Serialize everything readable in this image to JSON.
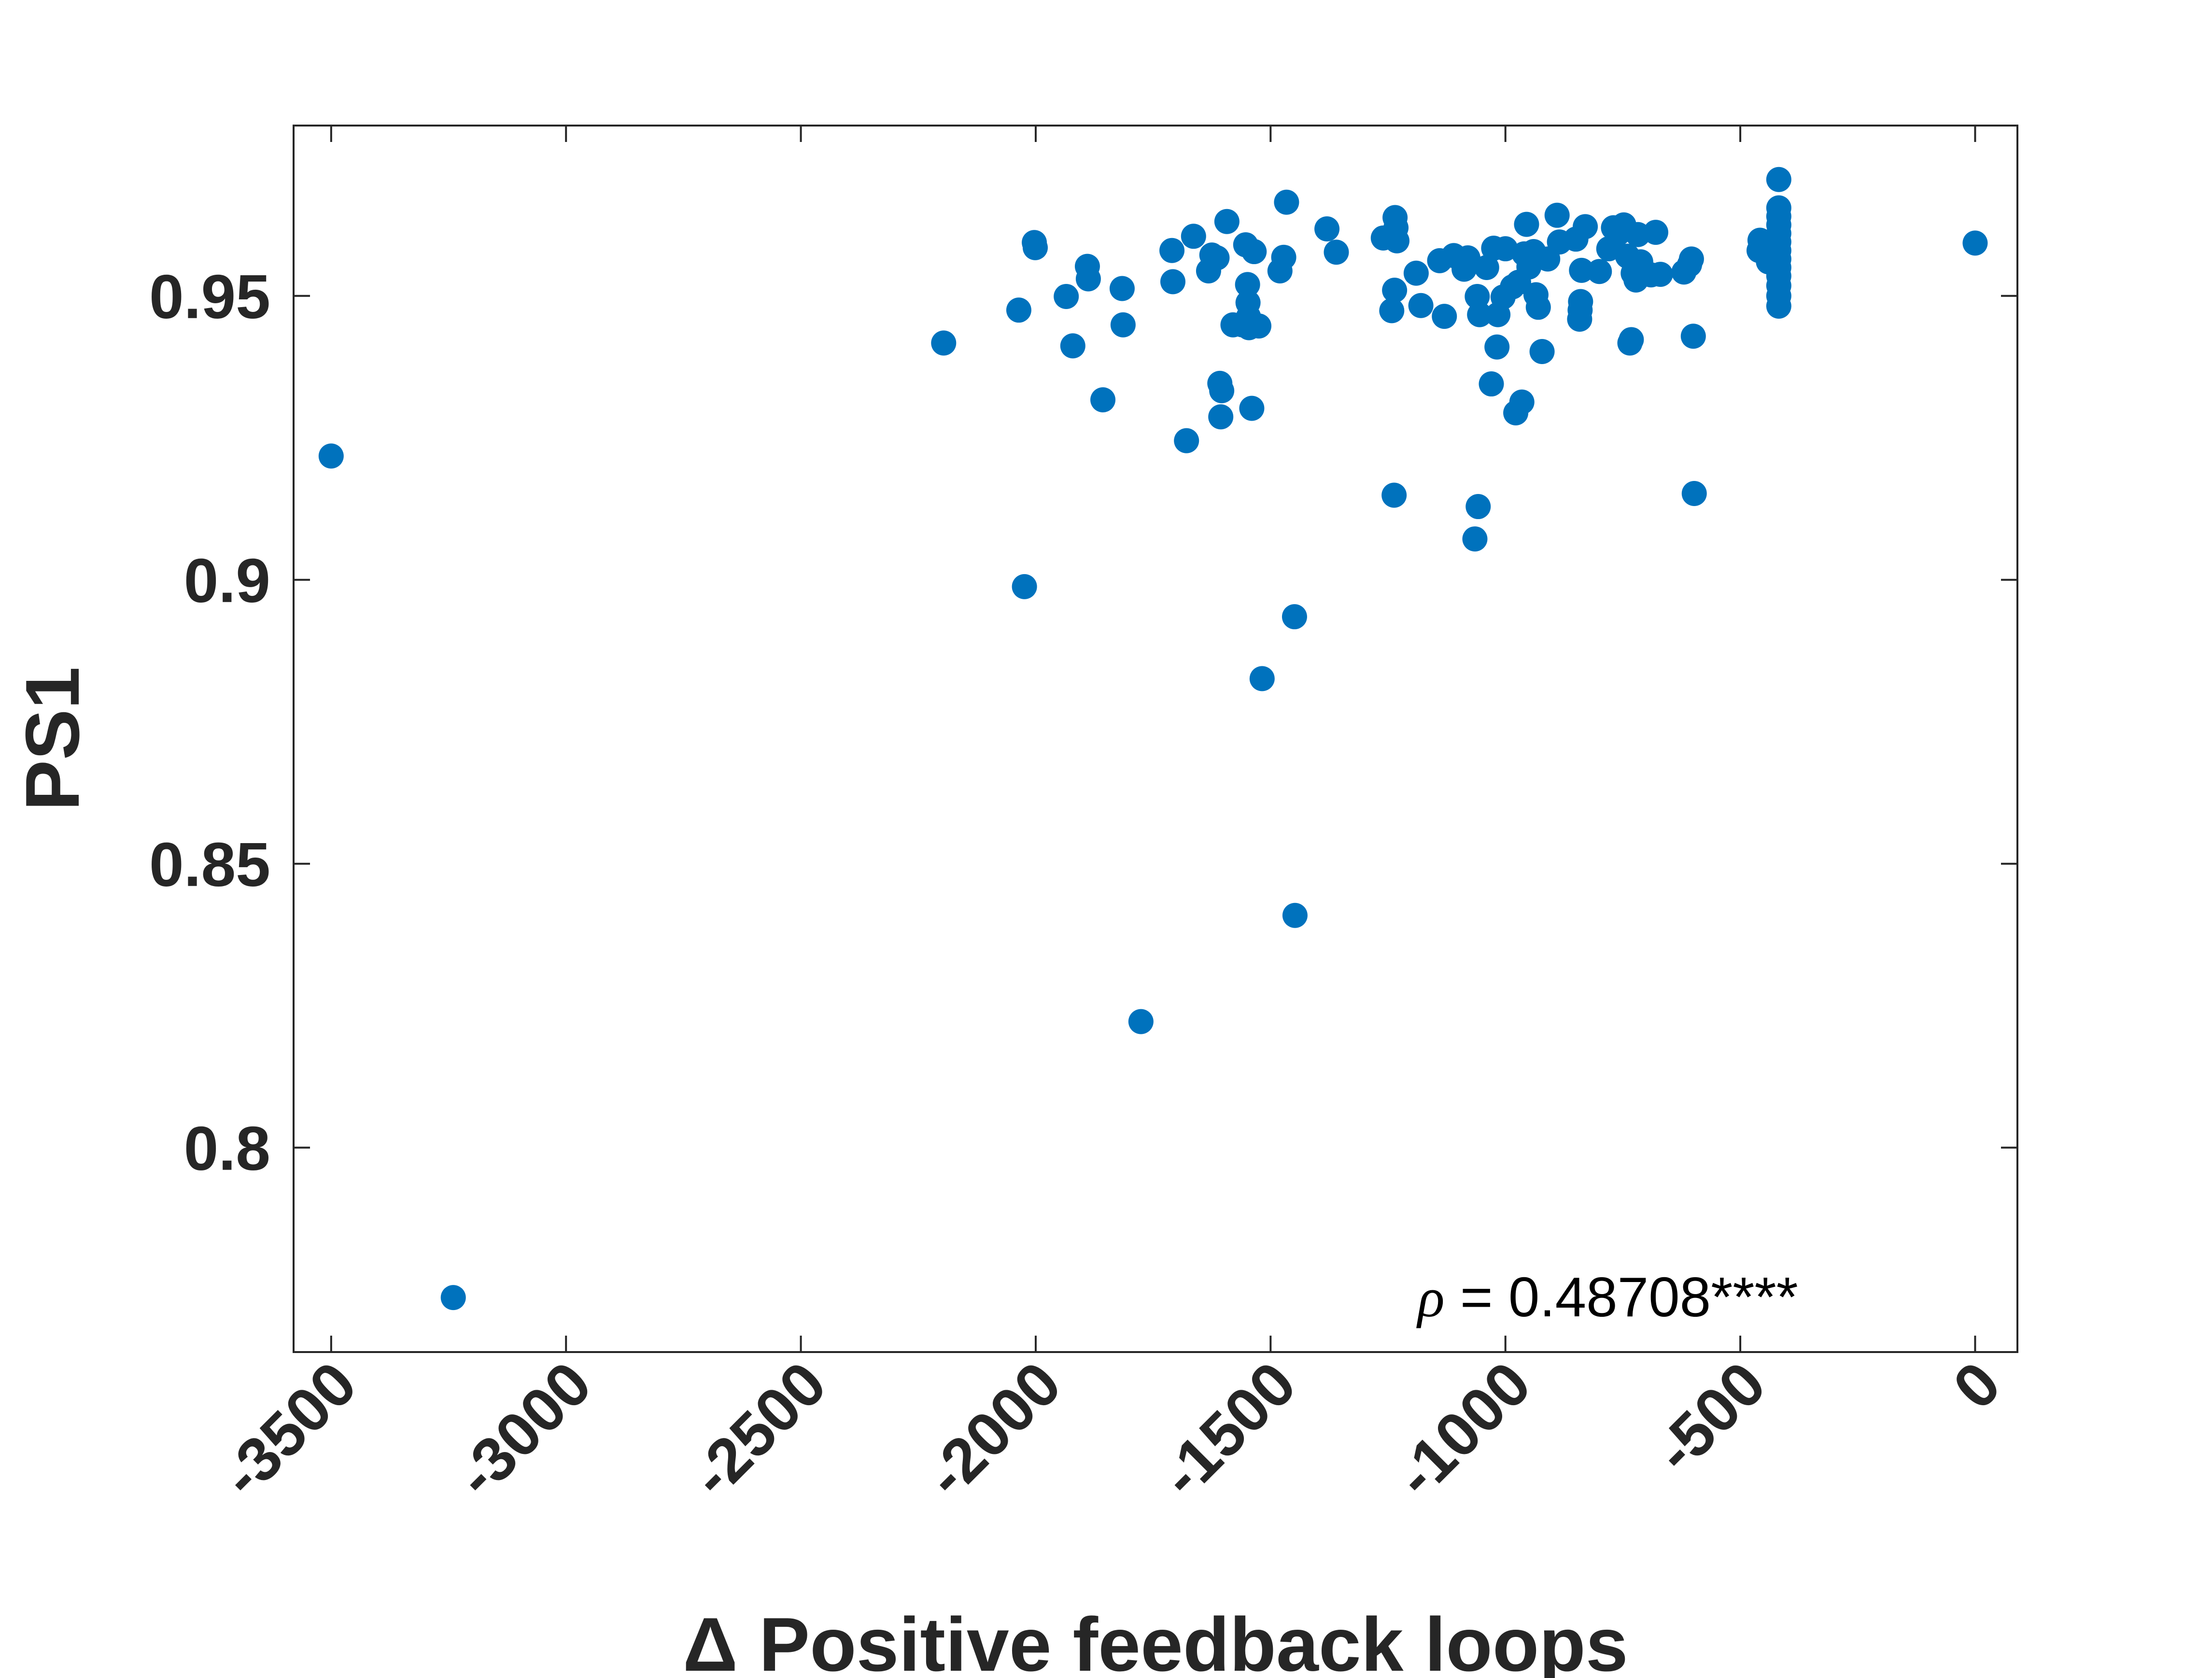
{
  "chart_data": {
    "type": "scatter",
    "xlabel": "Δ Positive feedback loops",
    "ylabel": "PS1",
    "xlim": [
      -3580,
      90
    ],
    "ylim": [
      0.764,
      0.98
    ],
    "xticks": [
      -3500,
      -3000,
      -2500,
      -2000,
      -1500,
      -1000,
      -500,
      0
    ],
    "xtick_labels": [
      "-3500",
      "-3000",
      "-2500",
      "-2000",
      "-1500",
      "-1000",
      "-500",
      "0"
    ],
    "yticks": [
      0.8,
      0.85,
      0.9,
      0.95
    ],
    "ytick_labels": [
      "0.8",
      "0.85",
      "0.9",
      "0.95"
    ],
    "grid": false,
    "marker_color": "#0072BD",
    "annotation": {
      "symbol": "ρ",
      "text": " = 0.48708****"
    },
    "points": [
      {
        "x": -3500,
        "y": 0.9218
      },
      {
        "x": -3240,
        "y": 0.7736
      },
      {
        "x": -2196,
        "y": 0.9417
      },
      {
        "x": -2036,
        "y": 0.9475
      },
      {
        "x": -2024,
        "y": 0.8988
      },
      {
        "x": -2003,
        "y": 0.9594
      },
      {
        "x": -2001,
        "y": 0.9585
      },
      {
        "x": -1935,
        "y": 0.9499
      },
      {
        "x": -1921,
        "y": 0.9412
      },
      {
        "x": -1890,
        "y": 0.9552
      },
      {
        "x": -1888,
        "y": 0.953
      },
      {
        "x": -1857,
        "y": 0.9317
      },
      {
        "x": -1816,
        "y": 0.9513
      },
      {
        "x": -1814,
        "y": 0.9449
      },
      {
        "x": -1776,
        "y": 0.8222
      },
      {
        "x": -1710,
        "y": 0.958
      },
      {
        "x": -1708,
        "y": 0.9525
      },
      {
        "x": -1679,
        "y": 0.9245
      },
      {
        "x": -1664,
        "y": 0.9605
      },
      {
        "x": -1632,
        "y": 0.9544
      },
      {
        "x": -1625,
        "y": 0.9572
      },
      {
        "x": -1614,
        "y": 0.9567
      },
      {
        "x": -1608,
        "y": 0.9346
      },
      {
        "x": -1606,
        "y": 0.9287
      },
      {
        "x": -1604,
        "y": 0.9333
      },
      {
        "x": -1593,
        "y": 0.9631
      },
      {
        "x": -1580,
        "y": 0.9449
      },
      {
        "x": -1560,
        "y": 0.9449
      },
      {
        "x": -1553,
        "y": 0.959
      },
      {
        "x": -1549,
        "y": 0.952
      },
      {
        "x": -1548,
        "y": 0.9488
      },
      {
        "x": -1547,
        "y": 0.9463
      },
      {
        "x": -1546,
        "y": 0.9444
      },
      {
        "x": -1540,
        "y": 0.9302
      },
      {
        "x": -1535,
        "y": 0.9578
      },
      {
        "x": -1525,
        "y": 0.9447
      },
      {
        "x": -1518,
        "y": 0.8826
      },
      {
        "x": -1480,
        "y": 0.9544
      },
      {
        "x": -1472,
        "y": 0.9568
      },
      {
        "x": -1466,
        "y": 0.9665
      },
      {
        "x": -1449,
        "y": 0.8935
      },
      {
        "x": -1448,
        "y": 0.8409
      },
      {
        "x": -1380,
        "y": 0.9618
      },
      {
        "x": -1360,
        "y": 0.9577
      },
      {
        "x": -1260,
        "y": 0.9602
      },
      {
        "x": -1242,
        "y": 0.9474
      },
      {
        "x": -1237,
        "y": 0.9149
      },
      {
        "x": -1236,
        "y": 0.951
      },
      {
        "x": -1235,
        "y": 0.9638
      },
      {
        "x": -1233,
        "y": 0.962
      },
      {
        "x": -1231,
        "y": 0.9597
      },
      {
        "x": -1190,
        "y": 0.954
      },
      {
        "x": -1180,
        "y": 0.9483
      },
      {
        "x": -1140,
        "y": 0.9562
      },
      {
        "x": -1130,
        "y": 0.9464
      },
      {
        "x": -1110,
        "y": 0.9571
      },
      {
        "x": -1088,
        "y": 0.9547
      },
      {
        "x": -1080,
        "y": 0.9567
      },
      {
        "x": -1065,
        "y": 0.9072
      },
      {
        "x": -1060,
        "y": 0.9499
      },
      {
        "x": -1058,
        "y": 0.9129
      },
      {
        "x": -1055,
        "y": 0.9467
      },
      {
        "x": -1040,
        "y": 0.955
      },
      {
        "x": -1030,
        "y": 0.9345
      },
      {
        "x": -1025,
        "y": 0.9584
      },
      {
        "x": -1018,
        "y": 0.941
      },
      {
        "x": -1016,
        "y": 0.9467
      },
      {
        "x": -1005,
        "y": 0.9498
      },
      {
        "x": -1000,
        "y": 0.9583
      },
      {
        "x": -985,
        "y": 0.9516
      },
      {
        "x": -978,
        "y": 0.9294
      },
      {
        "x": -972,
        "y": 0.9524
      },
      {
        "x": -965,
        "y": 0.9313
      },
      {
        "x": -960,
        "y": 0.9574
      },
      {
        "x": -955,
        "y": 0.9626
      },
      {
        "x": -950,
        "y": 0.9551
      },
      {
        "x": -940,
        "y": 0.9578
      },
      {
        "x": -935,
        "y": 0.9502
      },
      {
        "x": -930,
        "y": 0.948
      },
      {
        "x": -922,
        "y": 0.9402
      },
      {
        "x": -910,
        "y": 0.9565
      },
      {
        "x": -890,
        "y": 0.9642
      },
      {
        "x": -885,
        "y": 0.9595
      },
      {
        "x": -850,
        "y": 0.96
      },
      {
        "x": -842,
        "y": 0.9459
      },
      {
        "x": -841,
        "y": 0.9475
      },
      {
        "x": -840,
        "y": 0.949
      },
      {
        "x": -838,
        "y": 0.9545
      },
      {
        "x": -830,
        "y": 0.9622
      },
      {
        "x": -800,
        "y": 0.9543
      },
      {
        "x": -780,
        "y": 0.9583
      },
      {
        "x": -770,
        "y": 0.962
      },
      {
        "x": -760,
        "y": 0.961
      },
      {
        "x": -748,
        "y": 0.9625
      },
      {
        "x": -740,
        "y": 0.957
      },
      {
        "x": -735,
        "y": 0.9417
      },
      {
        "x": -732,
        "y": 0.9423
      },
      {
        "x": -728,
        "y": 0.954
      },
      {
        "x": -722,
        "y": 0.9528
      },
      {
        "x": -718,
        "y": 0.9608
      },
      {
        "x": -712,
        "y": 0.956
      },
      {
        "x": -690,
        "y": 0.9537
      },
      {
        "x": -680,
        "y": 0.9612
      },
      {
        "x": -670,
        "y": 0.9538
      },
      {
        "x": -620,
        "y": 0.9542
      },
      {
        "x": -608,
        "y": 0.9555
      },
      {
        "x": -604,
        "y": 0.9565
      },
      {
        "x": -600,
        "y": 0.9429
      },
      {
        "x": -598,
        "y": 0.9152
      },
      {
        "x": -460,
        "y": 0.958
      },
      {
        "x": -458,
        "y": 0.9598
      },
      {
        "x": -440,
        "y": 0.956
      },
      {
        "x": -418,
        "y": 0.9482
      },
      {
        "x": -418,
        "y": 0.95
      },
      {
        "x": -418,
        "y": 0.9518
      },
      {
        "x": -418,
        "y": 0.9535
      },
      {
        "x": -418,
        "y": 0.955
      },
      {
        "x": -418,
        "y": 0.9565
      },
      {
        "x": -418,
        "y": 0.958
      },
      {
        "x": -418,
        "y": 0.9595
      },
      {
        "x": -418,
        "y": 0.961
      },
      {
        "x": -418,
        "y": 0.9625
      },
      {
        "x": -418,
        "y": 0.964
      },
      {
        "x": -418,
        "y": 0.9655
      },
      {
        "x": -418,
        "y": 0.9705
      },
      {
        "x": 0,
        "y": 0.9593
      }
    ]
  }
}
